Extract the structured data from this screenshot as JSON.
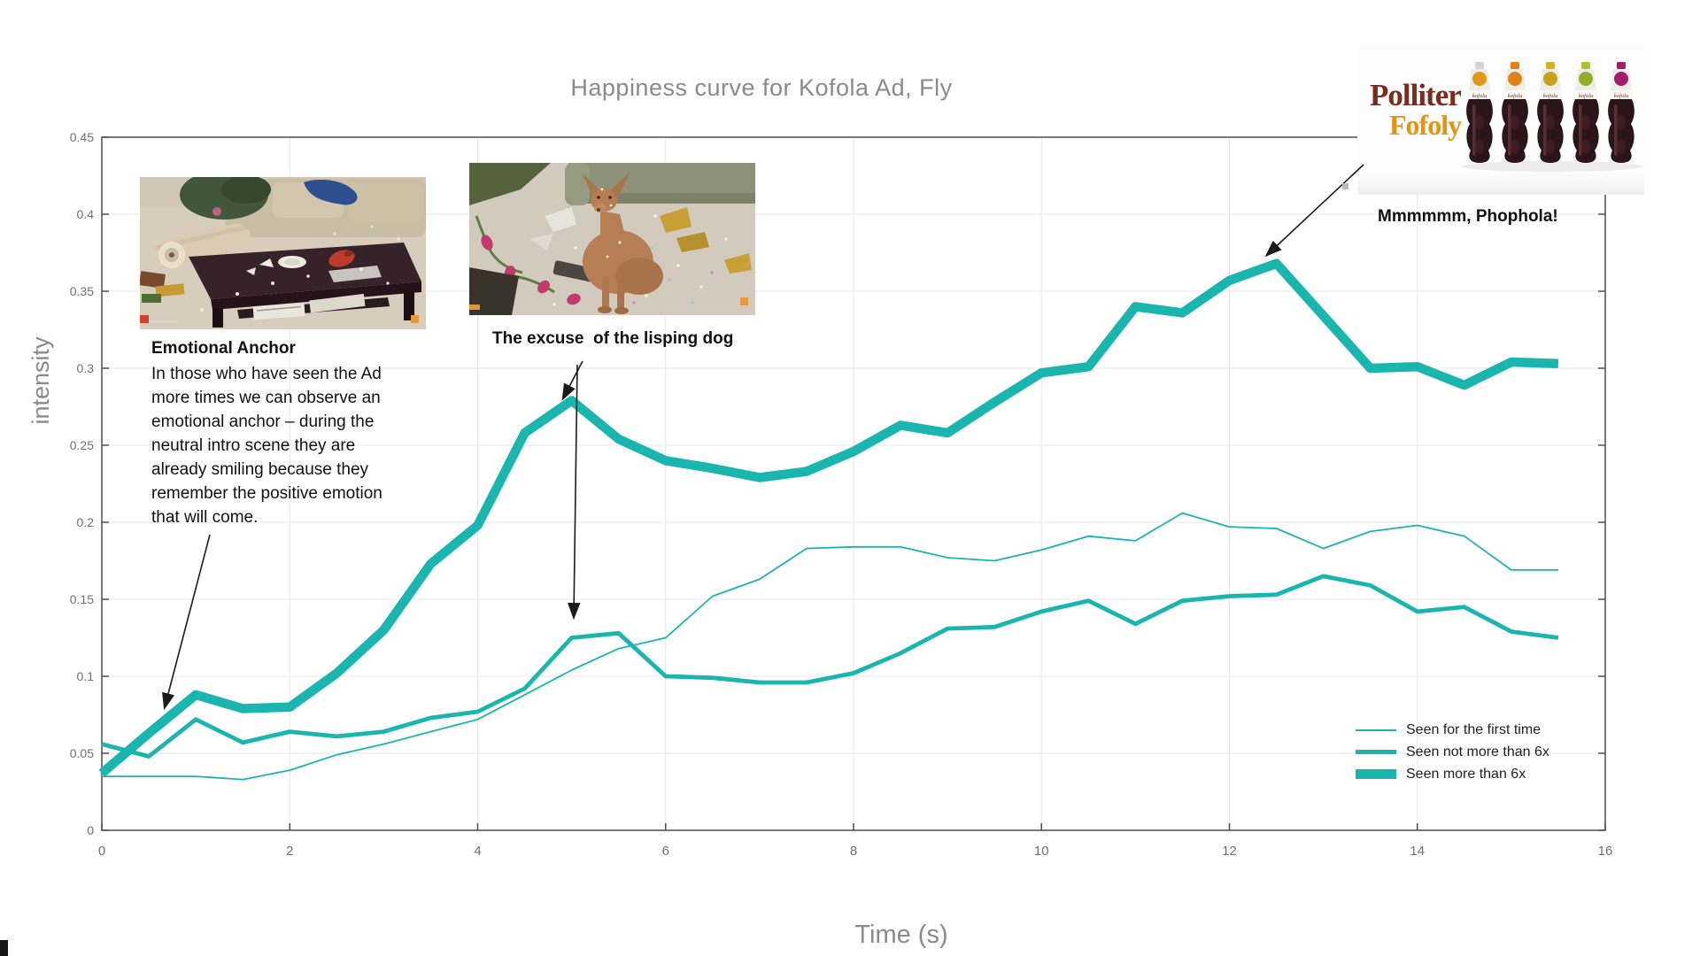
{
  "chart_data": {
    "type": "line",
    "title": "Happiness curve for Kofola Ad, Fly",
    "xlabel": "Time (s)",
    "ylabel": "intensity",
    "xlim": [
      0,
      16
    ],
    "ylim": [
      0,
      0.45
    ],
    "x_ticks": [
      0,
      2,
      4,
      6,
      8,
      10,
      12,
      14,
      16
    ],
    "x_tick_labels": [
      "0",
      "2",
      "4",
      "6",
      "8",
      "10",
      "12",
      "14",
      "16"
    ],
    "y_ticks": [
      0,
      0.05,
      0.1,
      0.15,
      0.2,
      0.25,
      0.3,
      0.35,
      0.4,
      0.45
    ],
    "y_tick_labels": [
      "0",
      "0.05",
      "0.1",
      "0.15",
      "0.2",
      "0.25",
      "0.3",
      "0.35",
      "0.4",
      "0.45"
    ],
    "grid": true,
    "legend_position": "inside-bottom-right",
    "line_color": "#19b5ae",
    "x": [
      0,
      0.5,
      1,
      1.5,
      2,
      2.5,
      3,
      3.5,
      4,
      4.5,
      5,
      5.5,
      6,
      6.5,
      7,
      7.5,
      8,
      8.5,
      9,
      9.5,
      10,
      10.5,
      11,
      11.5,
      12,
      12.5,
      13,
      13.5,
      14,
      14.5,
      15,
      15.5
    ],
    "series": [
      {
        "name": "Seen for the first time",
        "thickness": "thin",
        "values": [
          0.035,
          0.035,
          0.035,
          0.033,
          0.039,
          0.049,
          0.056,
          0.064,
          0.072,
          0.088,
          0.104,
          0.118,
          0.125,
          0.152,
          0.163,
          0.183,
          0.184,
          0.184,
          0.177,
          0.175,
          0.182,
          0.191,
          0.188,
          0.206,
          0.197,
          0.196,
          0.183,
          0.194,
          0.198,
          0.191,
          0.169,
          0.169
        ]
      },
      {
        "name": "Seen not more than 6x",
        "thickness": "medium",
        "values": [
          0.056,
          0.048,
          0.072,
          0.057,
          0.064,
          0.061,
          0.064,
          0.073,
          0.077,
          0.092,
          0.125,
          0.128,
          0.1,
          0.099,
          0.096,
          0.096,
          0.102,
          0.115,
          0.131,
          0.132,
          0.142,
          0.149,
          0.134,
          0.149,
          0.152,
          0.153,
          0.165,
          0.159,
          0.142,
          0.145,
          0.129,
          0.125
        ]
      },
      {
        "name": "Seen more than 6x",
        "thickness": "thick",
        "values": [
          0.037,
          0.063,
          0.088,
          0.079,
          0.08,
          0.102,
          0.13,
          0.173,
          0.198,
          0.258,
          0.279,
          0.254,
          0.24,
          0.235,
          0.229,
          0.233,
          0.246,
          0.263,
          0.258,
          0.278,
          0.297,
          0.301,
          0.34,
          0.336,
          0.357,
          0.368,
          0.334,
          0.3,
          0.301,
          0.289,
          0.304,
          0.303
        ]
      }
    ]
  },
  "annotations": {
    "emotional_anchor": {
      "heading": "Emotional Anchor",
      "body": "In those who have seen the Ad\nmore times we can observe an\nemotional anchor – during the\nneutral intro scene they are\nalready smiling because they\nremember the positive emotion\nthat will come."
    },
    "dog_caption": "The excuse  of the lisping dog",
    "logo_caption": "Mmmmmm, Phophola!"
  },
  "logo": {
    "brand_top": "Polliter",
    "brand_bottom": "Fofoly",
    "bottle_label": "kofola",
    "colors": {
      "brand_top": "#7b2d1d",
      "brand_bottom": "#e5940f"
    },
    "bottle_caps": [
      "#d3d3d3",
      "#e0821b",
      "#d4b41e",
      "#aec32d",
      "#a21d6c"
    ],
    "bottle_marks": [
      "#e09a16",
      "#e0821b",
      "#c8a11d",
      "#8fae2c",
      "#a21d6c"
    ]
  },
  "colors": {
    "accent_teal": "#19b5ae",
    "axis": "#4d4d4d",
    "grid": "#e7e7e7",
    "tick_text": "#6f6f6f"
  }
}
